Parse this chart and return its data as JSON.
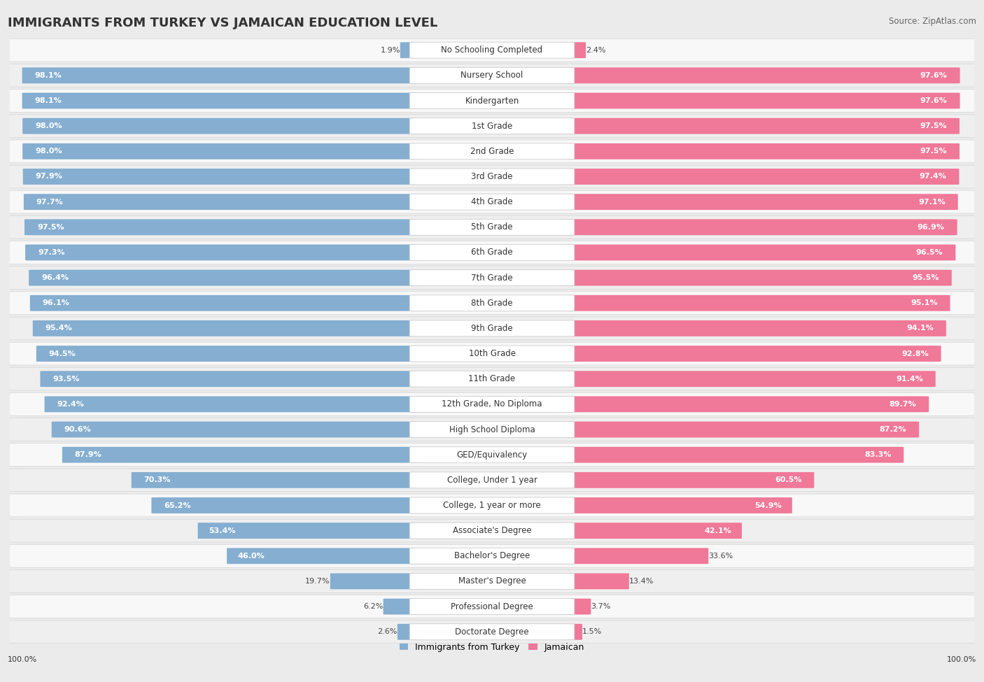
{
  "title": "IMMIGRANTS FROM TURKEY VS JAMAICAN EDUCATION LEVEL",
  "source": "Source: ZipAtlas.com",
  "categories": [
    "No Schooling Completed",
    "Nursery School",
    "Kindergarten",
    "1st Grade",
    "2nd Grade",
    "3rd Grade",
    "4th Grade",
    "5th Grade",
    "6th Grade",
    "7th Grade",
    "8th Grade",
    "9th Grade",
    "10th Grade",
    "11th Grade",
    "12th Grade, No Diploma",
    "High School Diploma",
    "GED/Equivalency",
    "College, Under 1 year",
    "College, 1 year or more",
    "Associate's Degree",
    "Bachelor's Degree",
    "Master's Degree",
    "Professional Degree",
    "Doctorate Degree"
  ],
  "turkey_values": [
    1.9,
    98.1,
    98.1,
    98.0,
    98.0,
    97.9,
    97.7,
    97.5,
    97.3,
    96.4,
    96.1,
    95.4,
    94.5,
    93.5,
    92.4,
    90.6,
    87.9,
    70.3,
    65.2,
    53.4,
    46.0,
    19.7,
    6.2,
    2.6
  ],
  "jamaican_values": [
    2.4,
    97.6,
    97.6,
    97.5,
    97.5,
    97.4,
    97.1,
    96.9,
    96.5,
    95.5,
    95.1,
    94.1,
    92.8,
    91.4,
    89.7,
    87.2,
    83.3,
    60.5,
    54.9,
    42.1,
    33.6,
    13.4,
    3.7,
    1.5
  ],
  "turkey_color": "#85aed0",
  "jamaican_color": "#f07898",
  "background_color": "#ebebeb",
  "row_color_odd": "#f5f5f5",
  "row_color_even": "#e8e8e8",
  "title_fontsize": 13,
  "label_fontsize": 8.5,
  "value_fontsize": 8.0,
  "legend_fontsize": 9,
  "source_fontsize": 8.5
}
